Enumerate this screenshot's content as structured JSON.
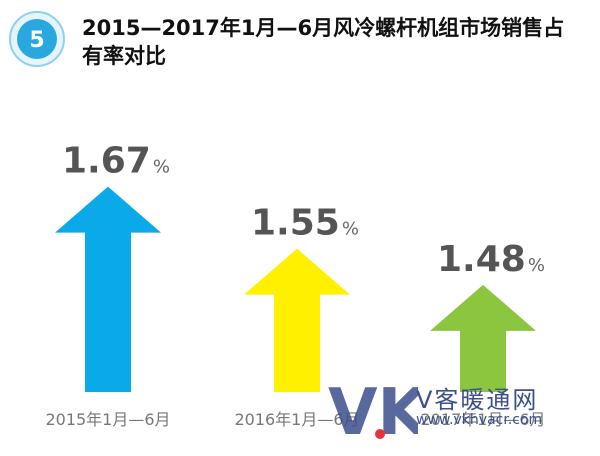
{
  "badge": {
    "number": "5",
    "color": "#29a8e0"
  },
  "title": "2015—2017年1月—6月风冷螺杆机组市场销售占有率对比",
  "chart_data": {
    "type": "bar",
    "categories": [
      "2015年1月—6月",
      "2016年1月—6月",
      "2017年1月—6月"
    ],
    "values": [
      1.67,
      1.55,
      1.48
    ],
    "value_labels": [
      "1.67",
      "1.55",
      "1.48"
    ],
    "unit": "%",
    "colors": [
      "#0aaae8",
      "#fff000",
      "#8cc63f"
    ],
    "title": "",
    "xlabel": "",
    "ylabel": ""
  },
  "watermark": {
    "logo": "VK",
    "name": "V客暖通网",
    "url": "www.vkhvacr.com"
  }
}
